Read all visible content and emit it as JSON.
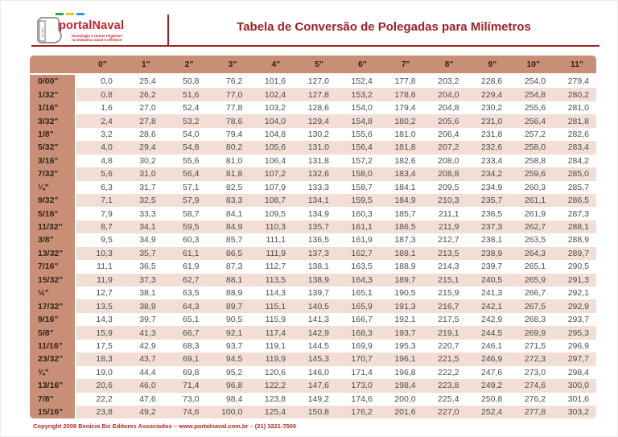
{
  "logo": {
    "brand": "portalNaval",
    "tagline_line1": "tecnologia e novos negócios",
    "tagline_line2": "na indústria naval e offshore",
    "icon_vertical_text": "on line"
  },
  "header": {
    "title": "Tabela de Conversão de Polegadas para Milímetros"
  },
  "footer": {
    "text": "Copyright 2009 Benicio Biz Editores Associados – www.portalnaval.com.br – (21) 3221-7500"
  },
  "colors": {
    "accent_dark_red": "#9e2023",
    "logo_red": "#c8242b",
    "footer_red": "#b32c24",
    "table_header_bg": "#c98e76",
    "row_stripe_pink": "#f3ded5",
    "row_white": "#ffffff",
    "data_text": "#4b4b4b",
    "header_text": "#33231c",
    "dash_green": "#2f9e4f",
    "dash_yellow": "#f5c400",
    "dash_blue": "#3f8fd2"
  },
  "chart_data": {
    "type": "table",
    "title": "Tabela de Conversão de Polegadas para Milímetros",
    "decimal_separator": ",",
    "column_headers": [
      "0\"",
      "1\"",
      "2\"",
      "3\"",
      "4\"",
      "5\"",
      "6\"",
      "7\"",
      "8\"",
      "9\"",
      "10\"",
      "11\""
    ],
    "rows": [
      {
        "label": "0/00\"",
        "values": [
          "0,0",
          "25,4",
          "50,8",
          "76,2",
          "101,6",
          "127,0",
          "152,4",
          "177,8",
          "203,2",
          "228,6",
          "254,0",
          "279,4"
        ]
      },
      {
        "label": "1/32\"",
        "values": [
          "0,8",
          "26,2",
          "51,6",
          "77,0",
          "102,4",
          "127,8",
          "153,2",
          "178,6",
          "204,0",
          "229,4",
          "254,8",
          "280,2"
        ]
      },
      {
        "label": "1/16\"",
        "values": [
          "1,6",
          "27,0",
          "52,4",
          "77,8",
          "103,2",
          "128,6",
          "154,0",
          "179,4",
          "204,8",
          "230,2",
          "255,6",
          "281,0"
        ]
      },
      {
        "label": "3/32\"",
        "values": [
          "2,4",
          "27,8",
          "53,2",
          "78,6",
          "104,0",
          "129,4",
          "154,8",
          "180,2",
          "205,6",
          "231,0",
          "256,4",
          "281,8"
        ]
      },
      {
        "label": "1/8\"",
        "values": [
          "3,2",
          "28,6",
          "54,0",
          "79,4",
          "104,8",
          "130,2",
          "155,6",
          "181,0",
          "206,4",
          "231,8",
          "257,2",
          "282,6"
        ]
      },
      {
        "label": "5/32\"",
        "values": [
          "4,0",
          "29,4",
          "54,8",
          "80,2",
          "105,6",
          "131,0",
          "156,4",
          "181,8",
          "207,2",
          "232,6",
          "258,0",
          "283,4"
        ]
      },
      {
        "label": "3/16\"",
        "values": [
          "4,8",
          "30,2",
          "55,6",
          "81,0",
          "106,4",
          "131,8",
          "157,2",
          "182,6",
          "208,0",
          "233,4",
          "258,8",
          "284,2"
        ]
      },
      {
        "label": "7/32\"",
        "values": [
          "5,6",
          "31,0",
          "56,4",
          "81,8",
          "107,2",
          "132,6",
          "158,0",
          "183,4",
          "208,8",
          "234,2",
          "259,6",
          "285,0"
        ]
      },
      {
        "label": "¼\"",
        "values": [
          "6,3",
          "31,7",
          "57,1",
          "82,5",
          "107,9",
          "133,3",
          "158,7",
          "184,1",
          "209,5",
          "234,9",
          "260,3",
          "285,7"
        ]
      },
      {
        "label": "9/32\"",
        "values": [
          "7,1",
          "32,5",
          "57,9",
          "83,3",
          "108,7",
          "134,1",
          "159,5",
          "184,9",
          "210,3",
          "235,7",
          "261,1",
          "286,5"
        ]
      },
      {
        "label": "5/16\"",
        "values": [
          "7,9",
          "33,3",
          "58,7",
          "84,1",
          "109,5",
          "134,9",
          "160,3",
          "185,7",
          "211,1",
          "236,5",
          "261,9",
          "287,3"
        ]
      },
      {
        "label": "11/32\"",
        "values": [
          "8,7",
          "34,1",
          "59,5",
          "84,9",
          "110,3",
          "135,7",
          "161,1",
          "186,5",
          "211,9",
          "237,3",
          "262,7",
          "288,1"
        ]
      },
      {
        "label": "3/8\"",
        "values": [
          "9,5",
          "34,9",
          "60,3",
          "85,7",
          "111,1",
          "136,5",
          "161,9",
          "187,3",
          "212,7",
          "238,1",
          "263,5",
          "288,9"
        ]
      },
      {
        "label": "13/32\"",
        "values": [
          "10,3",
          "35,7",
          "61,1",
          "86,5",
          "111,9",
          "137,3",
          "162,7",
          "188,1",
          "213,5",
          "238,9",
          "264,3",
          "289,7"
        ]
      },
      {
        "label": "7/16\"",
        "values": [
          "11,1",
          "36,5",
          "61,9",
          "87,3",
          "112,7",
          "138,1",
          "163,5",
          "188,9",
          "214,3",
          "239,7",
          "265,1",
          "290,5"
        ]
      },
      {
        "label": "15/32\"",
        "values": [
          "11,9",
          "37,3",
          "62,7",
          "88,1",
          "113,5",
          "138,9",
          "164,3",
          "189,7",
          "215,1",
          "240,5",
          "265,9",
          "291,3"
        ]
      },
      {
        "label": "½\"",
        "values": [
          "12,7",
          "38,1",
          "63,5",
          "88,9",
          "114,3",
          "139,7",
          "165,1",
          "190,5",
          "215,9",
          "241,3",
          "266,7",
          "292,1"
        ]
      },
      {
        "label": "17/32\"",
        "values": [
          "13,5",
          "38,9",
          "64,3",
          "89,7",
          "115,1",
          "140,5",
          "165,9",
          "191,3",
          "216,7",
          "242,1",
          "267,5",
          "292,9"
        ]
      },
      {
        "label": "9/16\"",
        "values": [
          "14,3",
          "39,7",
          "65,1",
          "90,5",
          "115,9",
          "141,3",
          "166,7",
          "192,1",
          "217,5",
          "242,9",
          "268,3",
          "293,7"
        ]
      },
      {
        "label": "5/8\"",
        "values": [
          "15,9",
          "41,3",
          "66,7",
          "92,1",
          "117,4",
          "142,9",
          "168,3",
          "193,7",
          "219,1",
          "244,5",
          "269,9",
          "295,3"
        ]
      },
      {
        "label": "11/16\"",
        "values": [
          "17,5",
          "42,9",
          "68,3",
          "93,7",
          "119,1",
          "144,5",
          "169,9",
          "195,3",
          "220,7",
          "246,1",
          "271,5",
          "296,9"
        ]
      },
      {
        "label": "23/32\"",
        "values": [
          "18,3",
          "43,7",
          "69,1",
          "94,5",
          "119,9",
          "145,3",
          "170,7",
          "196,1",
          "221,5",
          "246,9",
          "272,3",
          "297,7"
        ]
      },
      {
        "label": "¾\"",
        "values": [
          "19,0",
          "44,4",
          "69,8",
          "95,2",
          "120,6",
          "146,0",
          "171,4",
          "196,8",
          "222,2",
          "247,6",
          "273,0",
          "298,4"
        ]
      },
      {
        "label": "13/16\"",
        "values": [
          "20,6",
          "46,0",
          "71,4",
          "96,8",
          "122,2",
          "147,6",
          "173,0",
          "198,4",
          "223,8",
          "249,2",
          "274,6",
          "300,0"
        ]
      },
      {
        "label": "7/8\"",
        "values": [
          "22,2",
          "47,6",
          "73,0",
          "98,4",
          "123,8",
          "149,2",
          "174,6",
          "200,0",
          "225,4",
          "250,8",
          "276,2",
          "301,6"
        ]
      },
      {
        "label": "15/16\"",
        "values": [
          "23,8",
          "49,2",
          "74,6",
          "100,0",
          "125,4",
          "150,8",
          "176,2",
          "201,6",
          "227,0",
          "252,4",
          "277,8",
          "303,2"
        ]
      }
    ]
  }
}
